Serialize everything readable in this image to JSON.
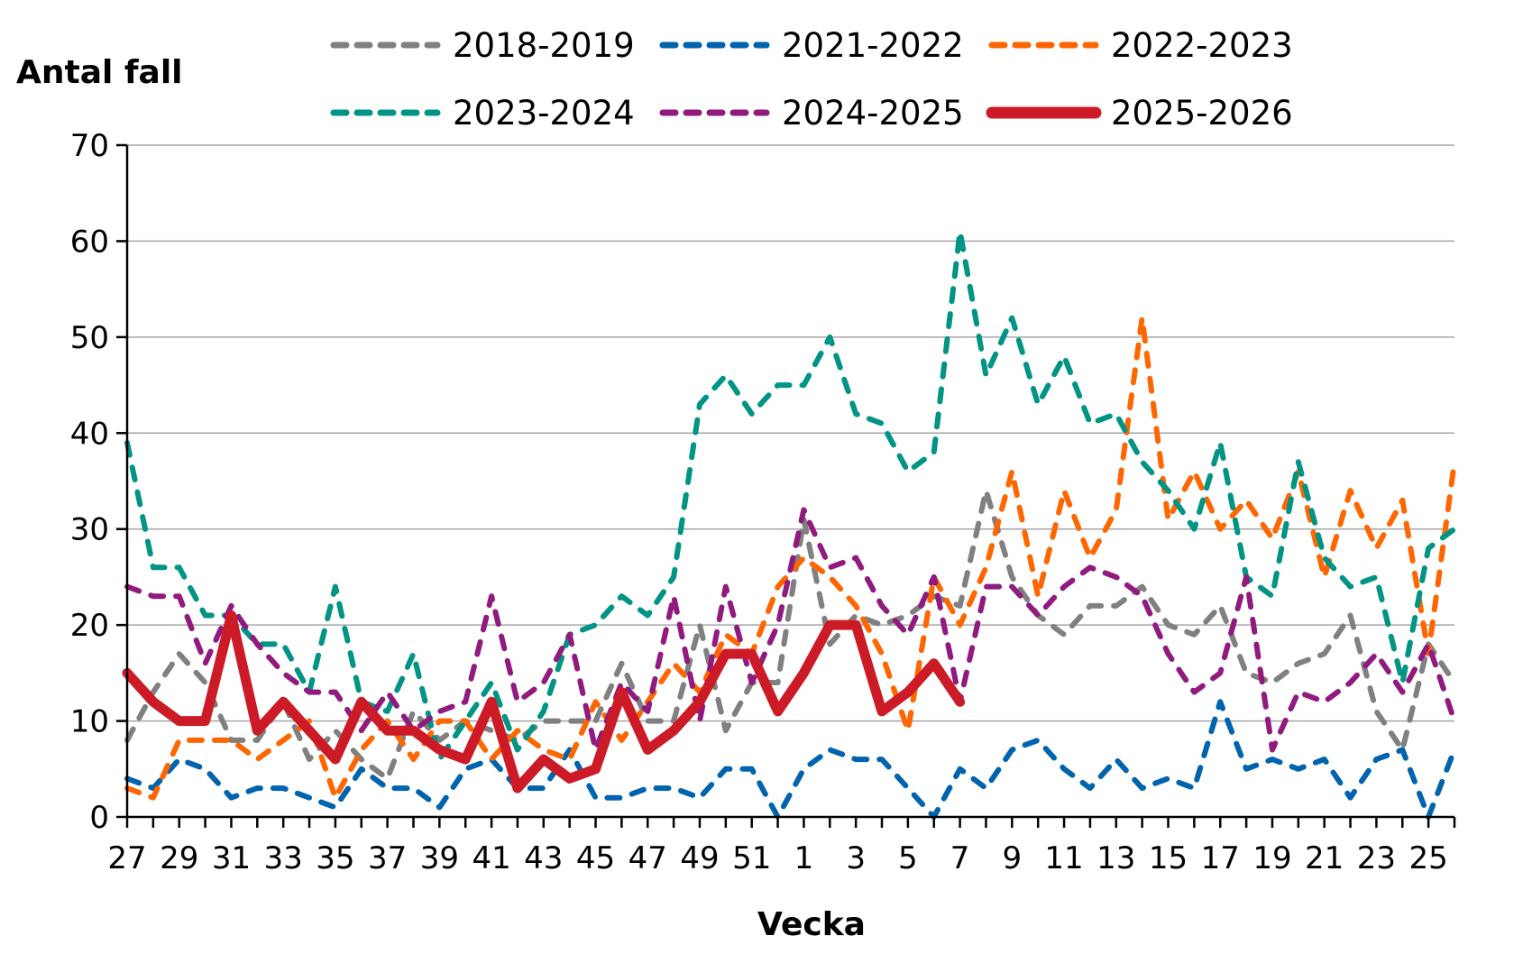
{
  "chart_data": {
    "type": "line",
    "title": "",
    "ylabel": "Antal fall",
    "xlabel": "Vecka",
    "ylim": [
      0,
      70
    ],
    "yticks": [
      0,
      10,
      20,
      30,
      40,
      50,
      60,
      70
    ],
    "grid": "horizontal",
    "legend_placement": "top",
    "x": [
      27,
      28,
      29,
      30,
      31,
      32,
      33,
      34,
      35,
      36,
      37,
      38,
      39,
      40,
      41,
      42,
      43,
      44,
      45,
      46,
      47,
      48,
      49,
      50,
      51,
      52,
      1,
      2,
      3,
      4,
      5,
      6,
      7,
      8,
      9,
      10,
      11,
      12,
      13,
      14,
      15,
      16,
      17,
      18,
      19,
      20,
      21,
      22,
      23,
      24,
      25,
      26
    ],
    "xtick_labels": [
      "27",
      "29",
      "31",
      "33",
      "35",
      "37",
      "39",
      "41",
      "43",
      "45",
      "47",
      "49",
      "51",
      "1",
      "3",
      "5",
      "7",
      "9",
      "11",
      "13",
      "15",
      "17",
      "19",
      "21",
      "23",
      "25"
    ],
    "series": [
      {
        "name": "2018-2019",
        "color": "#808080",
        "style": "dashed",
        "values": [
          8,
          13,
          17,
          14,
          8,
          8,
          12,
          6,
          9,
          6,
          4,
          11,
          8,
          10,
          9,
          8,
          10,
          10,
          10,
          16,
          10,
          10,
          20,
          9,
          14,
          14,
          31,
          18,
          21,
          20,
          21,
          23,
          22,
          34,
          25,
          21,
          19,
          22,
          22,
          24,
          20,
          19,
          22,
          15,
          14,
          16,
          17,
          21,
          11,
          7,
          18,
          14
        ]
      },
      {
        "name": "2021-2022",
        "color": "#0063AE",
        "style": "dashed",
        "values": [
          4,
          3,
          6,
          5,
          2,
          3,
          3,
          2,
          1,
          5,
          3,
          3,
          1,
          5,
          6,
          3,
          3,
          7,
          2,
          2,
          3,
          3,
          2,
          5,
          5,
          0,
          5,
          7,
          6,
          6,
          3,
          0,
          5,
          3,
          7,
          8,
          5,
          3,
          6,
          3,
          4,
          3,
          12,
          5,
          6,
          5,
          6,
          2,
          6,
          7,
          0,
          7
        ]
      },
      {
        "name": "2022-2023",
        "color": "#FF6600",
        "style": "dashed",
        "values": [
          3,
          2,
          8,
          8,
          8,
          6,
          8,
          10,
          2,
          7,
          10,
          6,
          10,
          10,
          6,
          9,
          7,
          6,
          12,
          8,
          12,
          16,
          13,
          19,
          17,
          24,
          27,
          25,
          22,
          17,
          9,
          25,
          20,
          26,
          36,
          23,
          34,
          27,
          32,
          52,
          31,
          36,
          30,
          33,
          29,
          36,
          25,
          34,
          28,
          33,
          17,
          37
        ]
      },
      {
        "name": "2023-2024",
        "color": "#009484",
        "style": "dashed",
        "values": [
          39,
          26,
          26,
          21,
          21,
          18,
          18,
          13,
          24,
          12,
          11,
          17,
          6,
          10,
          14,
          7,
          11,
          19,
          20,
          23,
          21,
          25,
          43,
          46,
          42,
          45,
          45,
          50,
          42,
          41,
          36,
          38,
          61,
          46,
          52,
          43,
          48,
          41,
          42,
          37,
          34,
          30,
          39,
          25,
          23,
          37,
          27,
          24,
          25,
          14,
          28,
          30
        ]
      },
      {
        "name": "2024-2025",
        "color": "#911A7F",
        "style": "dashed",
        "values": [
          24,
          23,
          23,
          16,
          22,
          18,
          15,
          13,
          13,
          9,
          13,
          9,
          11,
          12,
          23,
          12,
          14,
          19,
          7,
          14,
          11,
          23,
          10,
          24,
          14,
          20,
          32,
          26,
          27,
          22,
          19,
          25,
          12,
          24,
          24,
          21,
          24,
          26,
          25,
          23,
          17,
          13,
          15,
          25,
          7,
          13,
          12,
          14,
          17,
          13,
          18,
          10
        ]
      },
      {
        "name": "2025-2026",
        "color": "#CC1A26",
        "style": "solid",
        "values": [
          15,
          12,
          10,
          10,
          21,
          9,
          12,
          9,
          6,
          12,
          9,
          9,
          7,
          6,
          12,
          3,
          6,
          4,
          5,
          13,
          7,
          9,
          12,
          17,
          17,
          11,
          15,
          20,
          20,
          11,
          13,
          16,
          12,
          null,
          null,
          null,
          null,
          null,
          null,
          null,
          null,
          null,
          null,
          null,
          null,
          null,
          null,
          null,
          null,
          null,
          null,
          null
        ]
      }
    ]
  }
}
